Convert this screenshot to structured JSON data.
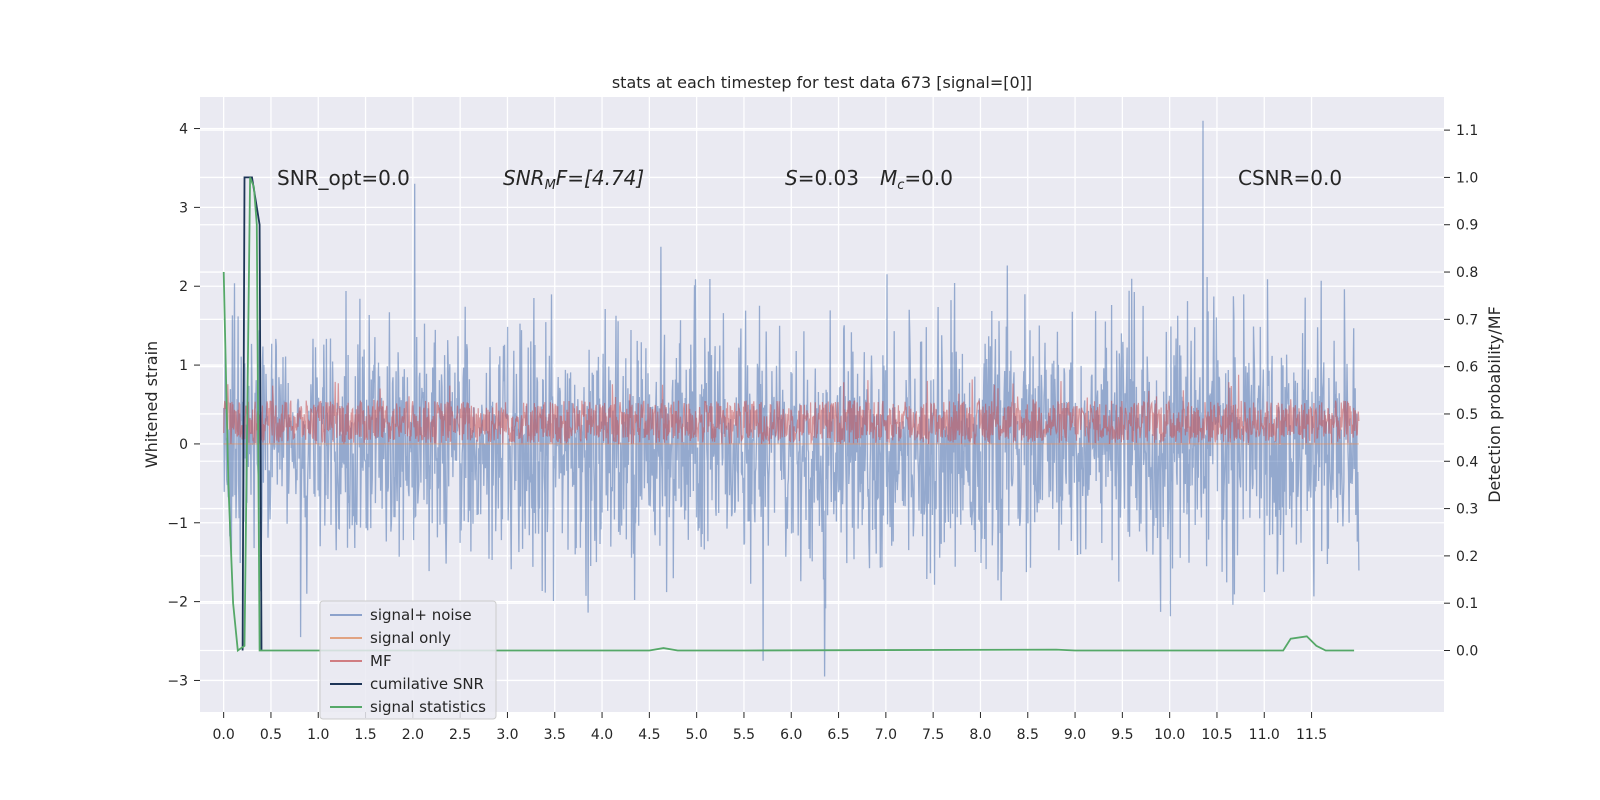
{
  "chart_data": {
    "type": "line",
    "title": "stats at each timestep for test data 673 [signal=[0]]",
    "xlabel": "",
    "ylabel": "Whitened strain",
    "ylabel_right": "Detection probability/MF",
    "xlim": [
      -0.25,
      12.9
    ],
    "ylim": [
      -3.4,
      4.4
    ],
    "ylim_right": [
      -0.13,
      1.17
    ],
    "x_ticks": [
      "0.0",
      "0.5",
      "1.0",
      "1.5",
      "2.0",
      "2.5",
      "3.0",
      "3.5",
      "4.0",
      "4.5",
      "5.0",
      "5.5",
      "6.0",
      "6.5",
      "7.0",
      "7.5",
      "8.0",
      "8.5",
      "9.0",
      "9.5",
      "10.0",
      "10.5",
      "11.0",
      "11.5"
    ],
    "y_ticks": [
      "4",
      "3",
      "2",
      "1",
      "0",
      "−1",
      "−2",
      "−3"
    ],
    "y_ticks_right": [
      "1.1",
      "1.0",
      "0.9",
      "0.8",
      "0.7",
      "0.6",
      "0.5",
      "0.4",
      "0.3",
      "0.2",
      "0.1",
      "0.0"
    ],
    "grid": true,
    "legend_placement": "lower-left",
    "annotations": {
      "snr_opt": "SNR_opt=0.0",
      "snr_mf_main": "SNR",
      "snr_mf_sub": "M",
      "snr_mf_rest": "F=[4.74]",
      "s_main": "S",
      "s_rest": "=0.03",
      "mc_main": "M",
      "mc_sub": "c",
      "mc_rest": "=0.0",
      "csnr": "CSNR=0.0"
    },
    "series": [
      {
        "name": "signal+ noise",
        "color": "#4c72b0",
        "axis": "left",
        "mean": 0.0,
        "std": 0.75,
        "range": [
          0.0,
          12.0
        ],
        "peaks": [
          [
            2.02,
            3.3
          ],
          [
            10.35,
            4.1
          ],
          [
            6.35,
            -2.95
          ],
          [
            5.7,
            -2.75
          ]
        ]
      },
      {
        "name": "signal only",
        "color": "#dd8452",
        "axis": "left",
        "values_note": "0 everywhere"
      },
      {
        "name": "MF",
        "color": "#c44e52",
        "axis": "left",
        "baseline": 0.0,
        "band": [
          0.0,
          0.55
        ]
      },
      {
        "name": "cumilative SNR",
        "color": "#4c72b0",
        "axis": "right",
        "x": [
          0.2,
          0.22,
          0.3,
          0.38,
          0.4
        ],
        "y": [
          0.0,
          1.0,
          1.0,
          0.9,
          0.0
        ]
      },
      {
        "name": "signal statistics",
        "color": "#55a868",
        "axis": "right",
        "x": [
          0.0,
          0.05,
          0.1,
          0.15,
          0.22,
          0.28,
          0.32,
          0.35,
          0.38,
          0.42,
          1.0,
          4.5,
          4.65,
          4.8,
          5.5,
          8.8,
          9.0,
          11.2,
          11.28,
          11.45,
          11.55,
          11.65,
          11.95
        ],
        "y": [
          0.8,
          0.35,
          0.1,
          0.0,
          0.01,
          1.0,
          0.98,
          0.9,
          0.0,
          0.0,
          0.0,
          0.0,
          0.005,
          0.0,
          0.0,
          0.002,
          0.0,
          0.0,
          0.025,
          0.03,
          0.01,
          0.0,
          0.0
        ]
      }
    ]
  }
}
